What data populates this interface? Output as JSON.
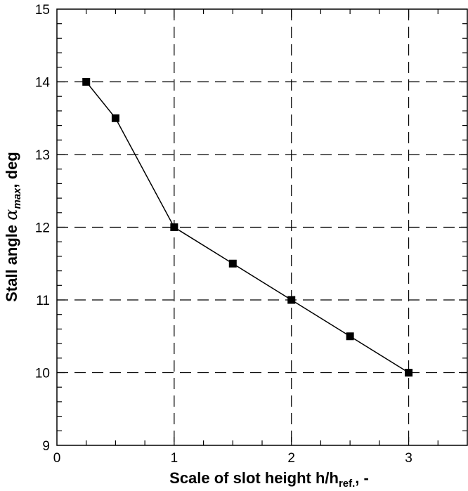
{
  "chart_data": {
    "type": "line",
    "title": "",
    "xlabel": {
      "main": "Scale of slot height h/h",
      "sub": "ref.",
      "suffix": ",   -"
    },
    "ylabel": {
      "main": "Stall angle ",
      "symbol": "α",
      "sub": "max",
      "suffix": ",   deg"
    },
    "xlim": [
      0,
      3.5
    ],
    "ylim": [
      9,
      15
    ],
    "xticks": [
      0,
      1,
      2,
      3
    ],
    "yticks": [
      9,
      10,
      11,
      12,
      13,
      14,
      15
    ],
    "x_minor_step": 0.25,
    "y_minor_step": 0.2,
    "grid": true,
    "grid_style": "dashed",
    "series": [
      {
        "marker": "square",
        "color": "#000000",
        "points": [
          {
            "x": 0.25,
            "y": 14.0
          },
          {
            "x": 0.5,
            "y": 13.5
          },
          {
            "x": 1.0,
            "y": 12.0
          },
          {
            "x": 1.5,
            "y": 11.5
          },
          {
            "x": 2.0,
            "y": 11.0
          },
          {
            "x": 2.5,
            "y": 10.5
          },
          {
            "x": 3.0,
            "y": 10.0
          }
        ]
      }
    ]
  }
}
